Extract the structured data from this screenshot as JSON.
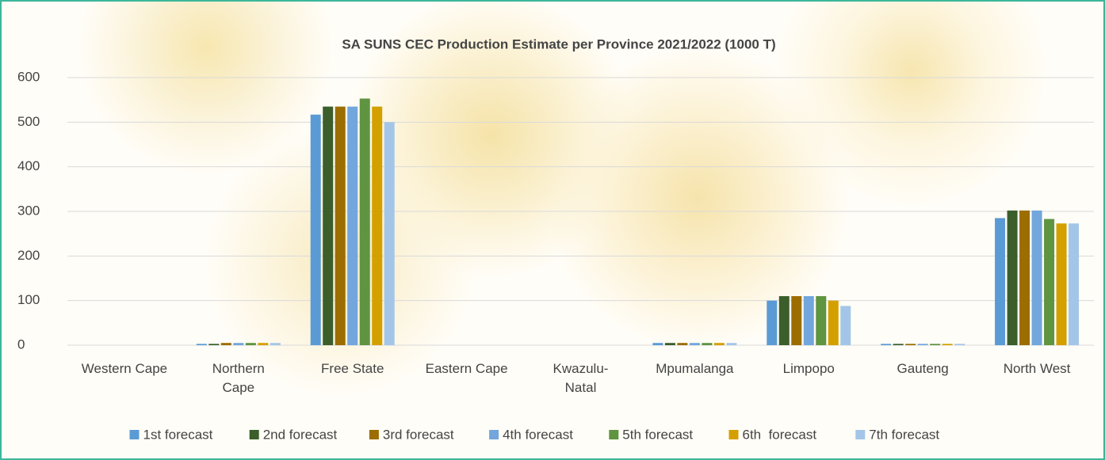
{
  "chart_data": {
    "type": "bar",
    "title": "SA SUNS CEC Production Estimate per Province 2021/2022 (1000 T)",
    "categories": [
      "Western Cape",
      "Northern\nCape",
      "Free State",
      "Eastern Cape",
      "Kwazulu-\nNatal",
      "Mpumalanga",
      "Limpopo",
      "Gauteng",
      "North West"
    ],
    "series": [
      {
        "name": "1st forecast",
        "color": "#5b9bd5",
        "values": [
          0,
          3,
          517,
          0,
          0,
          5,
          100,
          3,
          285
        ]
      },
      {
        "name": "2nd forecast",
        "color": "#3b5e2b",
        "values": [
          0,
          3,
          535,
          0,
          0,
          5,
          110,
          3,
          302
        ]
      },
      {
        "name": "3rd forecast",
        "color": "#9c6d00",
        "values": [
          0,
          5,
          535,
          0,
          0,
          5,
          110,
          3,
          302
        ]
      },
      {
        "name": "4th forecast",
        "color": "#72a6dc",
        "values": [
          0,
          5,
          535,
          0,
          0,
          5,
          110,
          3,
          302
        ]
      },
      {
        "name": "5th forecast",
        "color": "#5f9441",
        "values": [
          0,
          5,
          553,
          0,
          0,
          5,
          110,
          3,
          283
        ]
      },
      {
        "name": "6th  forecast",
        "color": "#d4a000",
        "values": [
          0,
          5,
          535,
          0,
          0,
          5,
          100,
          3,
          273
        ]
      },
      {
        "name": "7th forecast",
        "color": "#a3c6e8",
        "values": [
          0,
          5,
          500,
          0,
          0,
          5,
          88,
          3,
          273
        ]
      }
    ],
    "ylim": [
      0,
      600
    ],
    "yticks": [
      0,
      100,
      200,
      300,
      400,
      500,
      600
    ],
    "grid": true,
    "legend": "bottom"
  }
}
